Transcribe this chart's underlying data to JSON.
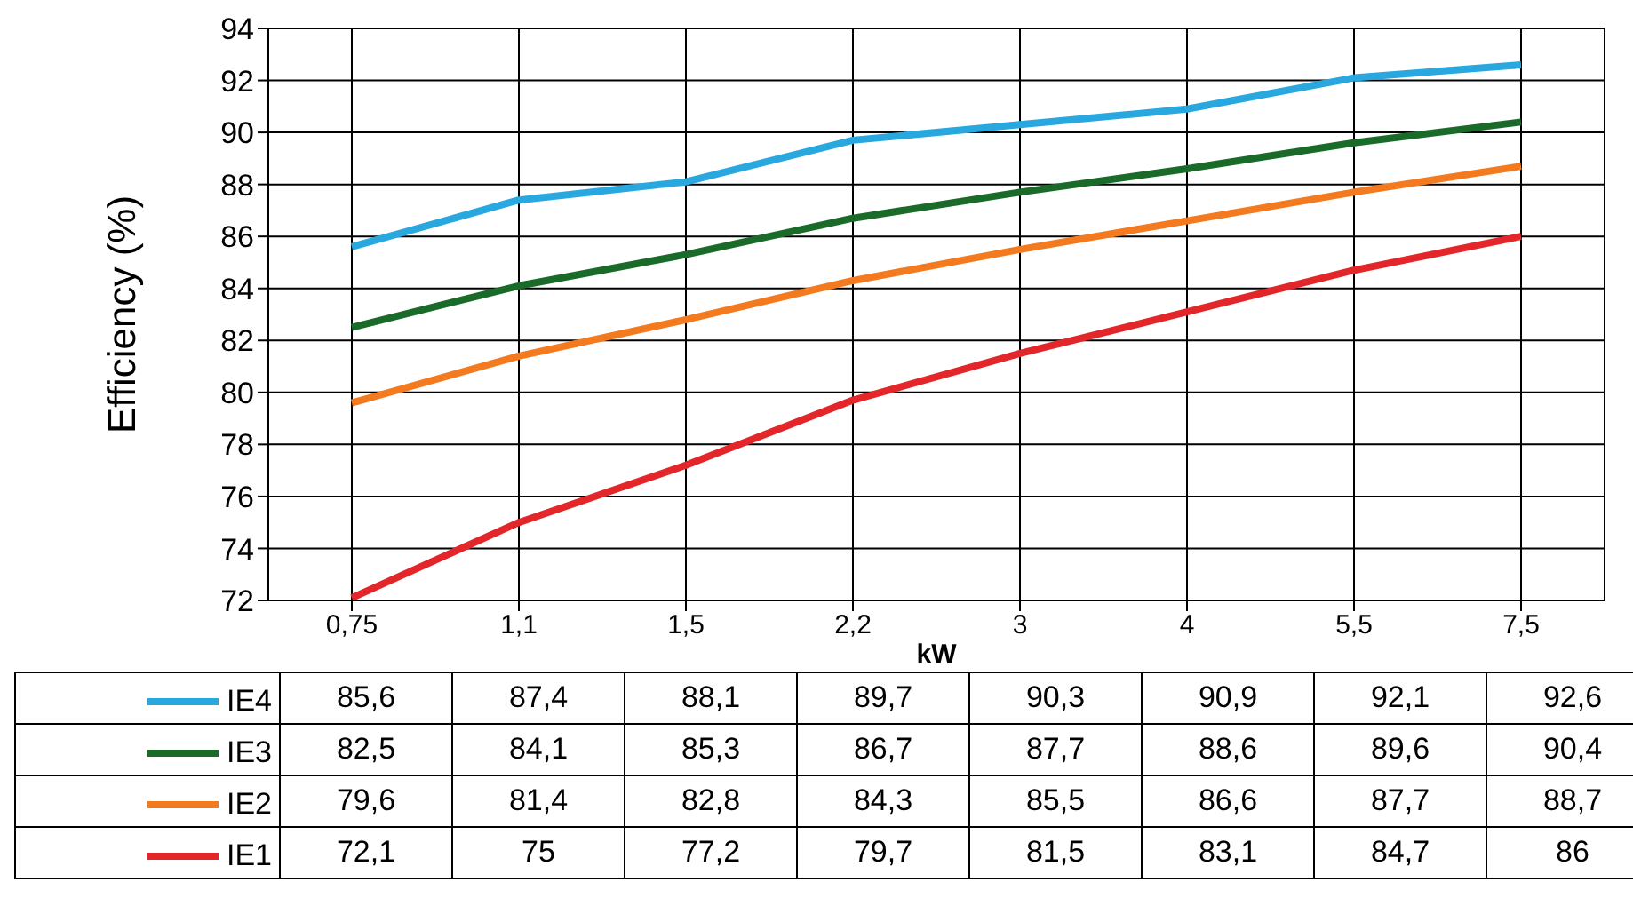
{
  "chart_data": {
    "type": "line",
    "ylabel": "Efficiency (%)",
    "xlabel": "kW",
    "categories": [
      "0,75",
      "1,1",
      "1,5",
      "2,2",
      "3",
      "4",
      "5,5",
      "7,5"
    ],
    "ylim": [
      72,
      94
    ],
    "yticks": [
      72,
      74,
      76,
      78,
      80,
      82,
      84,
      86,
      88,
      90,
      92,
      94
    ],
    "grid": true,
    "legend": "bottom left",
    "marker": "none",
    "line_style": "solid",
    "series": [
      {
        "name": "IE4",
        "color": "#29a8e0",
        "values": [
          85.6,
          87.4,
          88.1,
          89.7,
          90.3,
          90.9,
          92.1,
          92.6
        ],
        "value_labels": [
          "85,6",
          "87,4",
          "88,1",
          "89,7",
          "90,3",
          "90,9",
          "92,1",
          "92,6"
        ]
      },
      {
        "name": "IE3",
        "color": "#1a6b2a",
        "values": [
          82.5,
          84.1,
          85.3,
          86.7,
          87.7,
          88.6,
          89.6,
          90.4
        ],
        "value_labels": [
          "82,5",
          "84,1",
          "85,3",
          "86,7",
          "87,7",
          "88,6",
          "89,6",
          "90,4"
        ]
      },
      {
        "name": "IE2",
        "color": "#f47a20",
        "values": [
          79.6,
          81.4,
          82.8,
          84.3,
          85.5,
          86.6,
          87.7,
          88.7
        ],
        "value_labels": [
          "79,6",
          "81,4",
          "82,8",
          "84,3",
          "85,5",
          "86,6",
          "87,7",
          "88,7"
        ]
      },
      {
        "name": "IE1",
        "color": "#e3262a",
        "values": [
          72.1,
          75,
          77.2,
          79.7,
          81.5,
          83.1,
          84.7,
          86
        ],
        "value_labels": [
          "72,1",
          "75",
          "77,2",
          "79,7",
          "81,5",
          "83,1",
          "84,7",
          "86"
        ]
      }
    ]
  }
}
